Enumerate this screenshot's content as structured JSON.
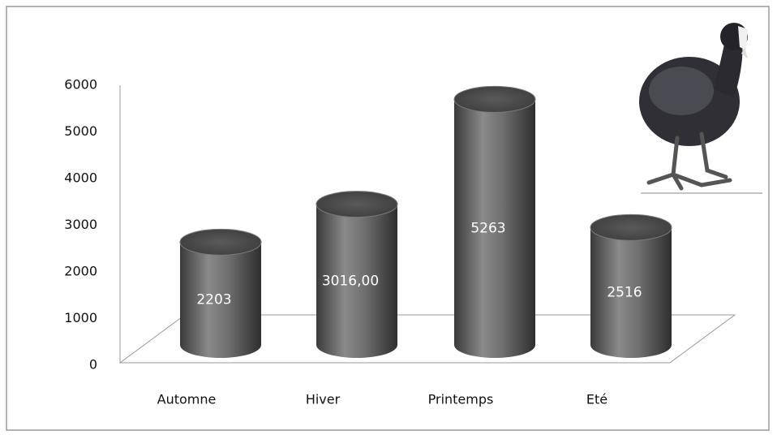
{
  "chart_data": {
    "type": "cylinder",
    "categories": [
      "Automne",
      "Hiver",
      "Printemps",
      "Eté"
    ],
    "values": [
      2203,
      3016,
      5263,
      2516
    ],
    "value_labels": [
      "2203",
      "3016,00",
      "5263",
      "2516"
    ],
    "color": "#6b6b6b",
    "ylim": [
      0,
      6000
    ],
    "yticks": [
      0,
      1000,
      2000,
      3000,
      4000,
      5000,
      6000
    ]
  }
}
